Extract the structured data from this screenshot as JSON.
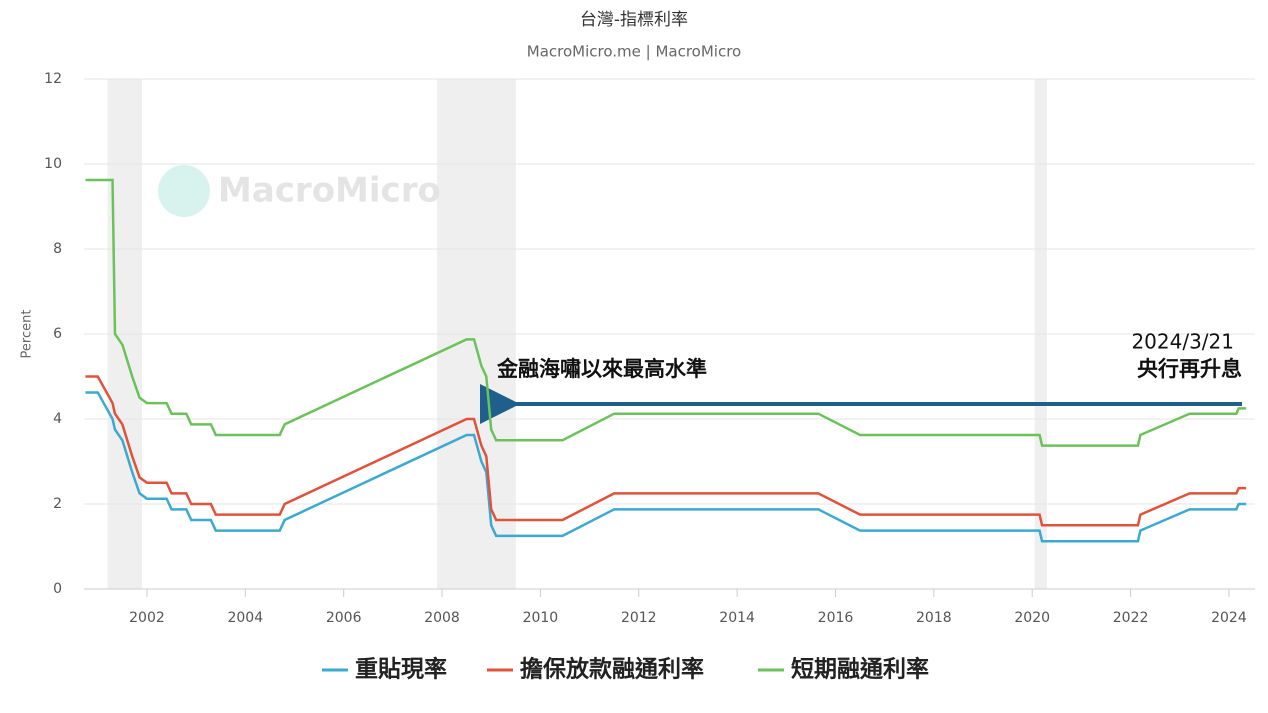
{
  "chart_data": {
    "type": "line",
    "title": "台灣-指標利率",
    "subtitle": "MacroMicro.me | MacroMicro",
    "watermark": "MacroMicro",
    "y_label": "Percent",
    "x": [
      2000.75,
      2001.0,
      2001.3,
      2001.35,
      2001.5,
      2001.7,
      2001.85,
      2002.0,
      2002.4,
      2002.5,
      2002.8,
      2002.9,
      2003.3,
      2003.4,
      2004.7,
      2004.8,
      2008.5,
      2008.65,
      2008.8,
      2008.9,
      2009.0,
      2009.1,
      2010.45,
      2011.5,
      2015.65,
      2016.5,
      2020.15,
      2020.2,
      2022.15,
      2022.2,
      2023.2,
      2024.15,
      2024.2,
      2024.35
    ],
    "series": [
      {
        "name": "重貼現率",
        "color": "#3ba9d0",
        "values": [
          4.625,
          4.625,
          4.0,
          3.75,
          3.5,
          2.75,
          2.25,
          2.125,
          2.125,
          1.875,
          1.875,
          1.625,
          1.625,
          1.375,
          1.375,
          1.625,
          3.625,
          3.625,
          3.0,
          2.75,
          1.5,
          1.25,
          1.25,
          1.875,
          1.875,
          1.375,
          1.375,
          1.125,
          1.125,
          1.375,
          1.875,
          1.875,
          2.0,
          2.0
        ]
      },
      {
        "name": "擔保放款融通利率",
        "color": "#e0533a",
        "values": [
          5.0,
          5.0,
          4.375,
          4.125,
          3.875,
          3.125,
          2.625,
          2.5,
          2.5,
          2.25,
          2.25,
          2.0,
          2.0,
          1.75,
          1.75,
          2.0,
          4.0,
          4.0,
          3.375,
          3.125,
          1.875,
          1.625,
          1.625,
          2.25,
          2.25,
          1.75,
          1.75,
          1.5,
          1.5,
          1.75,
          2.25,
          2.25,
          2.375,
          2.375
        ]
      },
      {
        "name": "短期融通利率",
        "color": "#6cc25a",
        "values": [
          9.625,
          9.625,
          9.625,
          6.0,
          5.75,
          5.0,
          4.5,
          4.375,
          4.375,
          4.125,
          4.125,
          3.875,
          3.875,
          3.625,
          3.625,
          3.875,
          5.875,
          5.875,
          5.25,
          5.0,
          3.75,
          3.5,
          3.5,
          4.125,
          4.125,
          3.625,
          3.625,
          3.375,
          3.375,
          3.625,
          4.125,
          4.125,
          4.25,
          4.25
        ]
      }
    ],
    "shaded_ranges": [
      [
        2001.2,
        2001.9
      ],
      [
        2007.9,
        2009.5
      ],
      [
        2020.05,
        2020.3
      ]
    ],
    "xlim": [
      2000.72,
      2024.53
    ],
    "xticks": [
      2002,
      2004,
      2006,
      2008,
      2010,
      2012,
      2014,
      2016,
      2018,
      2020,
      2022,
      2024
    ],
    "ylim": [
      0,
      12
    ],
    "yticks": [
      0,
      2,
      4,
      6,
      8,
      10,
      12
    ],
    "grid": true,
    "annotations": [
      "金融海嘯以來最高水準",
      "2024/3/21",
      "央行再升息"
    ]
  }
}
